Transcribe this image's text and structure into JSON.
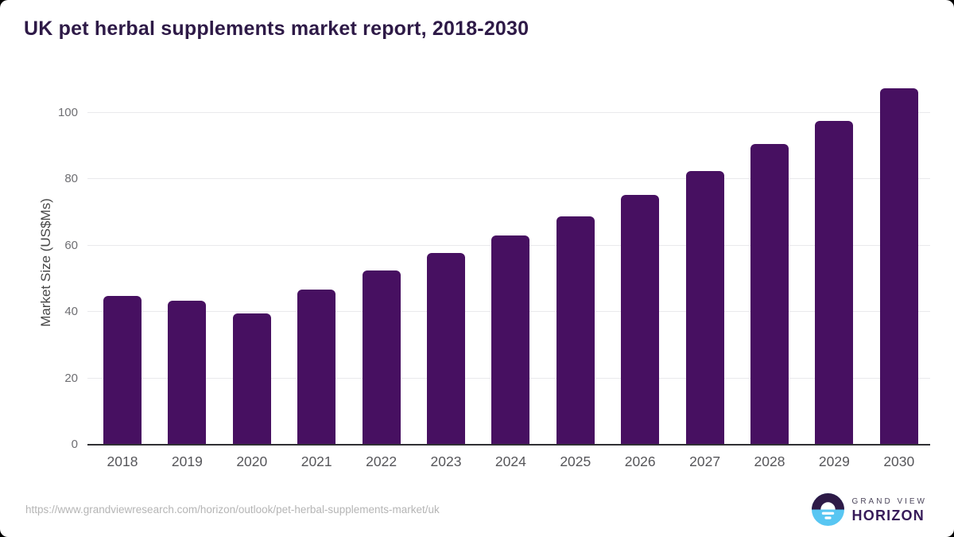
{
  "title": "UK pet herbal supplements market report, 2018-2030",
  "chart_data": {
    "type": "bar",
    "title": "UK pet herbal supplements market report, 2018-2030",
    "categories": [
      "2018",
      "2019",
      "2020",
      "2021",
      "2022",
      "2023",
      "2024",
      "2025",
      "2026",
      "2027",
      "2028",
      "2029",
      "2030"
    ],
    "values": [
      44.8,
      43.3,
      39.5,
      46.7,
      52.6,
      57.8,
      63.0,
      68.7,
      75.3,
      82.4,
      90.6,
      97.6,
      107.3
    ],
    "xlabel": "",
    "ylabel": "Market Size (US$Ms)",
    "ylim": [
      0,
      110
    ],
    "yticks": [
      0,
      20,
      40,
      60,
      80,
      100
    ],
    "grid": true,
    "legend_position": "none",
    "bar_color": "#471061"
  },
  "footer": {
    "source_url": "https://www.grandviewresearch.com/horizon/outlook/pet-herbal-supplements-market/uk",
    "logo_line1": "GRAND VIEW",
    "logo_line2": "HORIZON"
  },
  "colors": {
    "bar": "#471061",
    "title_text": "#2e1a47",
    "gridline": "#e9e9ec",
    "axis_line": "#303034",
    "logo_dark": "#2e1a47",
    "logo_blue": "#58c6f2"
  }
}
